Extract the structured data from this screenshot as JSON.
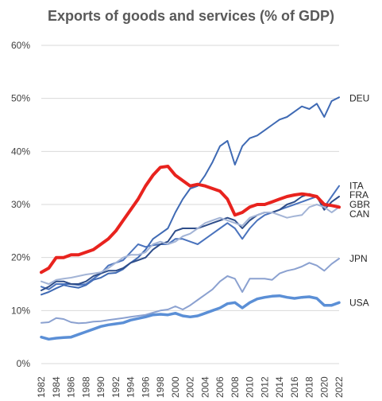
{
  "chart_data": {
    "type": "line",
    "title": "Exports of goods and services (% of GDP)",
    "xlabel": "",
    "ylabel": "",
    "ylim": [
      0,
      60
    ],
    "yticks": [
      0,
      10,
      20,
      30,
      40,
      50,
      60
    ],
    "ytick_labels": [
      "0%",
      "10%",
      "20%",
      "30%",
      "40%",
      "50%",
      "60%"
    ],
    "xlim": [
      1982,
      2022
    ],
    "xticks": [
      1982,
      1984,
      1986,
      1988,
      1990,
      1992,
      1994,
      1996,
      1998,
      2000,
      2002,
      2004,
      2006,
      2008,
      2010,
      2012,
      2014,
      2016,
      2018,
      2020,
      2022
    ],
    "xtick_labels": [
      "1982",
      "1984",
      "1986",
      "1988",
      "1990",
      "1992",
      "1994",
      "1996",
      "1998",
      "2000",
      "2002",
      "2004",
      "2006",
      "2008",
      "2010",
      "2012",
      "2014",
      "2016",
      "2018",
      "2020",
      "2022"
    ],
    "grid": {
      "horizontal": true,
      "vertical": false
    },
    "legend": "end-of-line labels",
    "x": [
      1982,
      1983,
      1984,
      1985,
      1986,
      1987,
      1988,
      1989,
      1990,
      1991,
      1992,
      1993,
      1994,
      1995,
      1996,
      1997,
      1998,
      1999,
      2000,
      2001,
      2002,
      2003,
      2004,
      2005,
      2006,
      2007,
      2008,
      2009,
      2010,
      2011,
      2012,
      2013,
      2014,
      2015,
      2016,
      2017,
      2018,
      2019,
      2020,
      2021,
      2022
    ],
    "series": [
      {
        "name": "DEU",
        "color": "#3f6ab4",
        "width": 2,
        "values": [
          13.0,
          13.5,
          14.2,
          14.8,
          14.5,
          14.3,
          14.8,
          15.8,
          16.2,
          17.0,
          17.1,
          17.8,
          19.0,
          20.0,
          21.5,
          23.5,
          24.5,
          25.5,
          28.5,
          31.0,
          33.0,
          33.5,
          35.5,
          38.0,
          41.0,
          42.0,
          37.5,
          41.0,
          42.5,
          43.0,
          44.0,
          45.0,
          46.0,
          46.5,
          47.5,
          48.5,
          48.0,
          49.0,
          46.5,
          49.5,
          50.2
        ]
      },
      {
        "name": "ITA",
        "color": "#4a73bd",
        "width": 2,
        "values": [
          14.5,
          14.0,
          15.0,
          15.0,
          15.0,
          14.8,
          15.0,
          16.0,
          17.0,
          18.5,
          19.0,
          19.5,
          21.0,
          22.5,
          22.0,
          22.3,
          22.5,
          22.5,
          23.5,
          23.5,
          23.0,
          22.5,
          23.5,
          24.5,
          25.5,
          26.5,
          25.5,
          23.5,
          25.5,
          27.0,
          28.0,
          28.5,
          29.0,
          29.5,
          30.0,
          30.5,
          31.0,
          31.5,
          29.5,
          31.5,
          33.5
        ]
      },
      {
        "name": "FRA",
        "color": "#2f4e8a",
        "width": 2,
        "values": [
          13.8,
          14.5,
          15.5,
          15.5,
          15.0,
          15.0,
          15.5,
          16.5,
          17.0,
          17.5,
          17.5,
          18.0,
          19.0,
          19.5,
          20.0,
          21.5,
          22.5,
          23.0,
          25.0,
          25.5,
          25.5,
          25.5,
          26.0,
          26.5,
          27.0,
          27.5,
          27.0,
          25.5,
          27.0,
          28.0,
          28.5,
          28.5,
          29.0,
          30.0,
          30.5,
          31.5,
          32.0,
          31.5,
          29.0,
          30.5,
          31.5
        ]
      },
      {
        "name": "GBR",
        "color": "#e8231e",
        "width": 4,
        "values": [
          17.2,
          18.0,
          20.0,
          20.0,
          20.5,
          20.5,
          21.0,
          21.5,
          22.5,
          23.5,
          25.0,
          27.0,
          29.0,
          31.0,
          33.5,
          35.5,
          37.0,
          37.2,
          35.5,
          34.5,
          33.5,
          33.8,
          33.5,
          33.0,
          32.5,
          31.0,
          28.0,
          28.5,
          29.5,
          30.0,
          30.0,
          30.5,
          31.0,
          31.5,
          31.8,
          32.0,
          31.8,
          31.5,
          30.0,
          29.8,
          29.5
        ]
      },
      {
        "name": "CAN",
        "color": "#a3b4d6",
        "width": 2,
        "values": [
          15.5,
          15.0,
          15.8,
          16.0,
          16.2,
          16.5,
          16.8,
          17.0,
          17.2,
          18.0,
          19.0,
          20.0,
          20.5,
          20.5,
          21.0,
          22.5,
          23.0,
          22.5,
          23.0,
          24.0,
          24.5,
          25.5,
          26.5,
          27.0,
          27.5,
          27.0,
          26.5,
          26.0,
          27.5,
          28.0,
          28.5,
          28.5,
          28.0,
          27.5,
          27.8,
          28.0,
          29.5,
          30.0,
          29.5,
          28.5,
          29.5
        ]
      },
      {
        "name": "JPN",
        "color": "#8ba1d0",
        "width": 2,
        "values": [
          7.7,
          7.8,
          8.6,
          8.4,
          7.8,
          7.6,
          7.7,
          7.9,
          8.0,
          8.2,
          8.4,
          8.6,
          8.8,
          9.0,
          9.2,
          9.6,
          10.0,
          10.2,
          10.8,
          10.2,
          11.0,
          12.0,
          13.0,
          14.0,
          15.5,
          16.5,
          16.0,
          13.5,
          16.0,
          16.0,
          16.0,
          15.8,
          17.0,
          17.5,
          17.8,
          18.3,
          19.0,
          18.5,
          17.5,
          18.8,
          19.8
        ]
      },
      {
        "name": "USA",
        "color": "#5b8fd6",
        "width": 3.5,
        "values": [
          5.0,
          4.6,
          4.8,
          4.9,
          5.0,
          5.5,
          6.0,
          6.5,
          7.0,
          7.3,
          7.5,
          7.7,
          8.2,
          8.5,
          8.8,
          9.2,
          9.3,
          9.2,
          9.5,
          9.0,
          8.8,
          9.0,
          9.5,
          10.0,
          10.5,
          11.3,
          11.5,
          10.5,
          11.5,
          12.2,
          12.5,
          12.7,
          12.8,
          12.5,
          12.3,
          12.5,
          12.6,
          12.3,
          11.0,
          11.0,
          11.5
        ]
      }
    ],
    "end_labels": [
      {
        "text": "DEU",
        "y": 50.0
      },
      {
        "text": "ITA",
        "y": 33.5
      },
      {
        "text": "FRA",
        "y": 31.8
      },
      {
        "text": "GBR",
        "y": 30.0
      },
      {
        "text": "CAN",
        "y": 28.2
      },
      {
        "text": "JPN",
        "y": 19.8
      },
      {
        "text": "USA",
        "y": 11.5
      }
    ]
  }
}
